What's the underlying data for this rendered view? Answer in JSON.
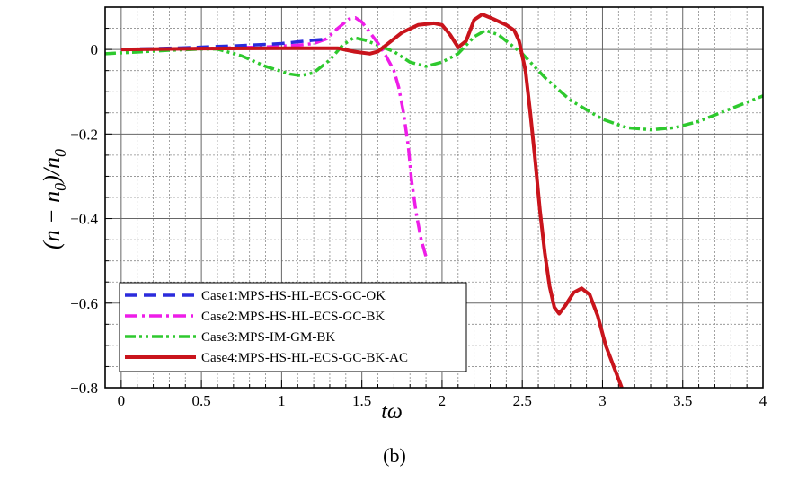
{
  "chart_data": {
    "type": "line",
    "title": "",
    "xlabel": "tω",
    "ylabel": "(n − n0)/n0",
    "ylabel_main": "(n − n",
    "ylabel_sub1": "0",
    "ylabel_mid": ")/n",
    "ylabel_sub2": "0",
    "xlim": [
      -0.1,
      4
    ],
    "ylim": [
      -0.8,
      0.1
    ],
    "xticks": [
      0,
      0.5,
      1,
      1.5,
      2,
      2.5,
      3,
      3.5,
      4
    ],
    "xtick_labels": [
      "0",
      "0.5",
      "1",
      "1.5",
      "2",
      "2.5",
      "3",
      "3.5",
      "4"
    ],
    "yticks": [
      0,
      -0.2,
      -0.4,
      -0.6,
      -0.8
    ],
    "ytick_labels": [
      "0",
      "−0.2",
      "−0.4",
      "−0.6",
      "−0.8"
    ],
    "grid": true,
    "legend_position": "bottom-left",
    "caption": "(b)",
    "series": [
      {
        "name": "Case1:MPS-HS-HL-ECS-GC-OK",
        "color": "#2b2bdc",
        "style": "dashed",
        "points": [
          [
            0,
            0
          ],
          [
            0.2,
            0.002
          ],
          [
            0.4,
            0.004
          ],
          [
            0.6,
            0.007
          ],
          [
            0.8,
            0.01
          ],
          [
            1.0,
            0.014
          ],
          [
            1.1,
            0.018
          ],
          [
            1.2,
            0.022
          ],
          [
            1.27,
            0.024
          ]
        ]
      },
      {
        "name": "Case2:MPS-HS-HL-ECS-GC-BK",
        "color": "#ee1de8",
        "style": "dashdot",
        "points": [
          [
            0,
            0
          ],
          [
            0.3,
            0.001
          ],
          [
            0.6,
            0.003
          ],
          [
            0.9,
            0.006
          ],
          [
            1.1,
            0.01
          ],
          [
            1.2,
            0.014
          ],
          [
            1.28,
            0.025
          ],
          [
            1.35,
            0.05
          ],
          [
            1.42,
            0.072
          ],
          [
            1.46,
            0.075
          ],
          [
            1.5,
            0.065
          ],
          [
            1.55,
            0.04
          ],
          [
            1.6,
            0.015
          ],
          [
            1.65,
            -0.015
          ],
          [
            1.7,
            -0.05
          ],
          [
            1.73,
            -0.09
          ],
          [
            1.76,
            -0.15
          ],
          [
            1.79,
            -0.23
          ],
          [
            1.81,
            -0.31
          ],
          [
            1.84,
            -0.39
          ],
          [
            1.87,
            -0.45
          ],
          [
            1.9,
            -0.49
          ]
        ]
      },
      {
        "name": "Case3:MPS-IM-GM-BK",
        "color": "#2ec92e",
        "style": "dashdotdot",
        "points": [
          [
            -0.1,
            -0.01
          ],
          [
            0.1,
            -0.006
          ],
          [
            0.3,
            -0.002
          ],
          [
            0.5,
            0.001
          ],
          [
            0.6,
            0.001
          ],
          [
            0.75,
            -0.015
          ],
          [
            0.9,
            -0.04
          ],
          [
            1.05,
            -0.058
          ],
          [
            1.12,
            -0.062
          ],
          [
            1.2,
            -0.055
          ],
          [
            1.3,
            -0.025
          ],
          [
            1.38,
            0.01
          ],
          [
            1.45,
            0.028
          ],
          [
            1.52,
            0.022
          ],
          [
            1.6,
            0.01
          ],
          [
            1.7,
            -0.005
          ],
          [
            1.8,
            -0.03
          ],
          [
            1.9,
            -0.04
          ],
          [
            2.0,
            -0.03
          ],
          [
            2.1,
            -0.01
          ],
          [
            2.2,
            0.03
          ],
          [
            2.27,
            0.045
          ],
          [
            2.35,
            0.035
          ],
          [
            2.5,
            -0.01
          ],
          [
            2.65,
            -0.07
          ],
          [
            2.8,
            -0.12
          ],
          [
            3.0,
            -0.165
          ],
          [
            3.15,
            -0.185
          ],
          [
            3.3,
            -0.19
          ],
          [
            3.45,
            -0.185
          ],
          [
            3.6,
            -0.17
          ],
          [
            3.8,
            -0.14
          ],
          [
            4.0,
            -0.11
          ]
        ]
      },
      {
        "name": "Case4:MPS-HS-HL-ECS-GC-BK-AC",
        "color": "#c9141c",
        "style": "solid",
        "points": [
          [
            0,
            0
          ],
          [
            0.5,
            0.002
          ],
          [
            1.0,
            0.003
          ],
          [
            1.35,
            0.003
          ],
          [
            1.45,
            -0.005
          ],
          [
            1.55,
            -0.01
          ],
          [
            1.6,
            -0.005
          ],
          [
            1.65,
            0.01
          ],
          [
            1.75,
            0.04
          ],
          [
            1.85,
            0.058
          ],
          [
            1.95,
            0.062
          ],
          [
            2.0,
            0.058
          ],
          [
            2.05,
            0.035
          ],
          [
            2.1,
            0.005
          ],
          [
            2.15,
            0.02
          ],
          [
            2.2,
            0.07
          ],
          [
            2.25,
            0.083
          ],
          [
            2.32,
            0.072
          ],
          [
            2.4,
            0.058
          ],
          [
            2.45,
            0.045
          ],
          [
            2.48,
            0.02
          ],
          [
            2.52,
            -0.05
          ],
          [
            2.55,
            -0.15
          ],
          [
            2.58,
            -0.26
          ],
          [
            2.61,
            -0.38
          ],
          [
            2.64,
            -0.48
          ],
          [
            2.67,
            -0.56
          ],
          [
            2.7,
            -0.61
          ],
          [
            2.73,
            -0.625
          ],
          [
            2.77,
            -0.605
          ],
          [
            2.82,
            -0.575
          ],
          [
            2.87,
            -0.565
          ],
          [
            2.92,
            -0.58
          ],
          [
            2.97,
            -0.63
          ],
          [
            3.02,
            -0.7
          ],
          [
            3.08,
            -0.76
          ],
          [
            3.12,
            -0.8
          ]
        ]
      }
    ]
  }
}
